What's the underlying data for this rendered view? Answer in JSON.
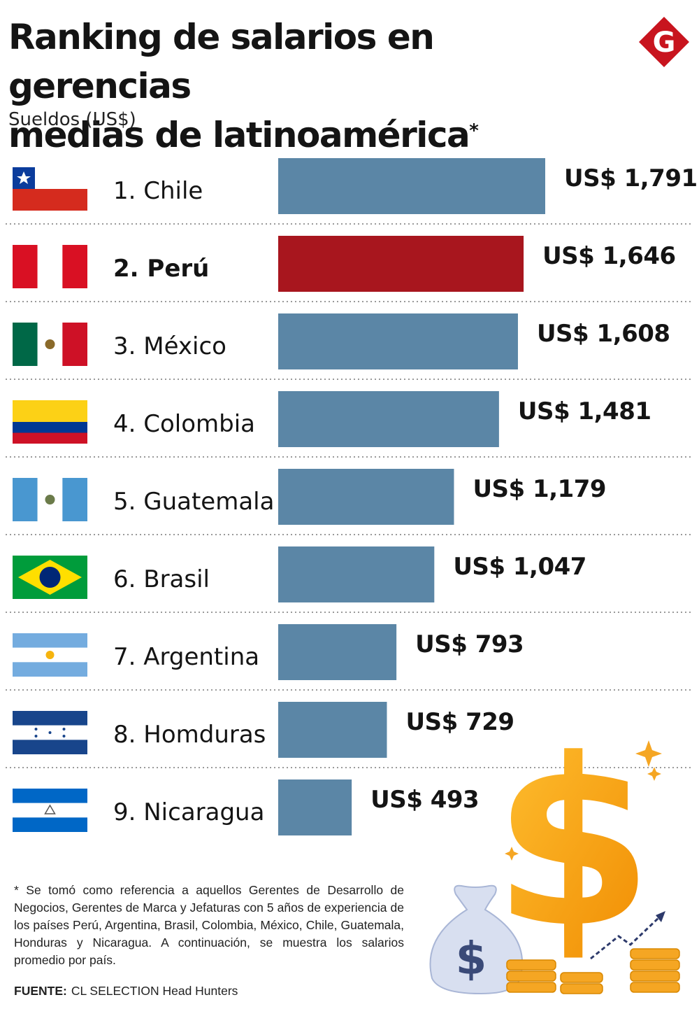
{
  "header": {
    "title_line1": "Ranking de salarios en gerencias",
    "title_line2": "medias de latinoamérica",
    "title_mark": "*",
    "subtitle": "Sueldos (US$)",
    "logo_letter": "G"
  },
  "chart_data": {
    "type": "bar",
    "orientation": "horizontal",
    "categories": [
      "1. Chile",
      "2. Perú",
      "3. México",
      "4. Colombia",
      "5. Guatemala",
      "6. Brasil",
      "7. Argentina",
      "8. Homduras",
      "9. Nicaragua"
    ],
    "values": [
      1791,
      1646,
      1608,
      1481,
      1179,
      1047,
      793,
      729,
      493
    ],
    "value_labels": [
      "US$ 1,791",
      "US$ 1,646",
      "US$ 1,608",
      "US$ 1,481",
      "US$ 1,179",
      "US$ 1,047",
      "US$ 793",
      "US$ 729",
      "US$ 493"
    ],
    "highlight_index": 1,
    "xlim": [
      0,
      1791
    ],
    "colors": {
      "default": "#5b86a6",
      "highlight": "#a8161e"
    },
    "flags": [
      "chile",
      "peru",
      "mexico",
      "colombia",
      "guatemala",
      "brasil",
      "argentina",
      "honduras",
      "nicaragua"
    ]
  },
  "footer": {
    "footnote": "* Se tomó como referencia a aquellos Gerentes de Desarrollo de Negocios, Gerentes de Marca y Jefaturas con 5 años de experiencia de los países Perú, Argentina, Brasil, Colombia, México, Chile, Guatemala, Honduras y Nicaragua. A continuación, se muestra los salarios promedio por país.",
    "source_label": "FUENTE:",
    "source_text": "CL SELECTION Head Hunters"
  },
  "decor": {
    "bag_symbol": "$",
    "big_symbol": "$"
  },
  "colors": {
    "brand": "#c8141e",
    "bar": "#5b86a6",
    "highlight": "#a8161e",
    "gold": "#f5a623"
  }
}
